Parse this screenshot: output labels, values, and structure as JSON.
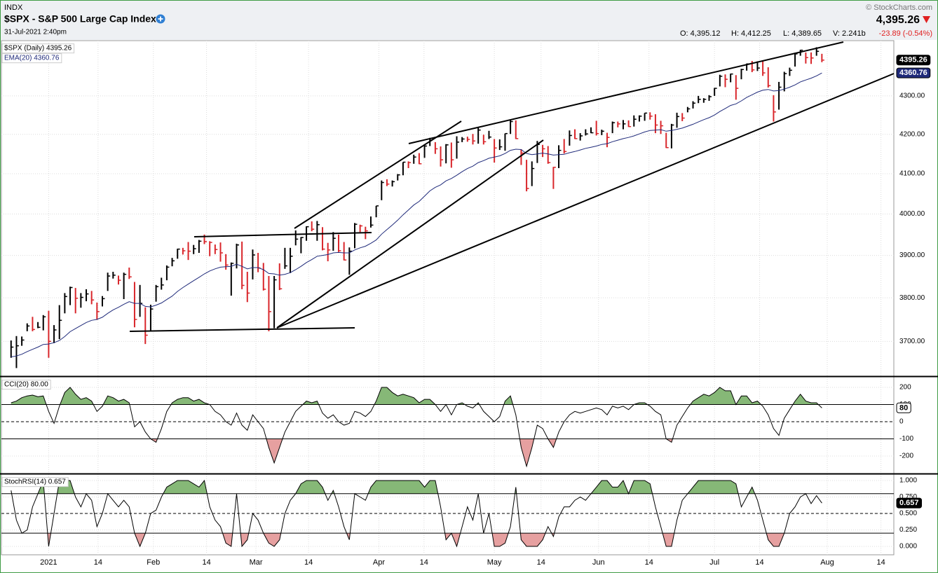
{
  "header": {
    "exchange": "INDX",
    "title": "$SPX - S&P 500 Large Cap Index",
    "timestamp": "31-Jul-2021 2:40pm",
    "copyright": "© StockCharts.com",
    "last": "4,395.26",
    "open": "O: 4,395.12",
    "high": "H: 4,412.25",
    "low": "L: 4,389.65",
    "volume": "V: 2.241b",
    "change": "-23.89 (-0.54%)"
  },
  "chart_data": [
    {
      "type": "ohlc",
      "legend": "$SPX (Daily) 4395.26",
      "last_label": "4395.26",
      "up_color": "#000000",
      "down_color": "#d9262b",
      "log": true,
      "grid": true,
      "ylim": [
        3622,
        4448
      ],
      "yticks": [
        {
          "value": 3700,
          "label": "3700.00"
        },
        {
          "value": 3800,
          "label": "3800.00"
        },
        {
          "value": 3900,
          "label": "3900.00"
        },
        {
          "value": 4000,
          "label": "4000.00"
        },
        {
          "value": 4100,
          "label": "4100.00"
        },
        {
          "value": 4200,
          "label": "4200.00"
        },
        {
          "value": 4300,
          "label": "4300.00"
        }
      ],
      "xlim": [
        -1.8,
        164.4
      ],
      "xticks": [
        {
          "value": 7,
          "label": "2021"
        },
        {
          "value": 16.2,
          "label": "14"
        },
        {
          "value": 26.5,
          "label": "Feb"
        },
        {
          "value": 36.4,
          "label": "14"
        },
        {
          "value": 45.6,
          "label": "Mar"
        },
        {
          "value": 55.4,
          "label": "14"
        },
        {
          "value": 68.5,
          "label": "Apr"
        },
        {
          "value": 76.9,
          "label": "14"
        },
        {
          "value": 90,
          "label": "May"
        },
        {
          "value": 98.7,
          "label": "14"
        },
        {
          "value": 109.4,
          "label": "Jun"
        },
        {
          "value": 118.8,
          "label": "14"
        },
        {
          "value": 131,
          "label": "Jul"
        },
        {
          "value": 139.4,
          "label": "14"
        },
        {
          "value": 152,
          "label": "Aug"
        },
        {
          "value": 162,
          "label": "14"
        }
      ],
      "close": [
        3687,
        3690,
        3703,
        3735,
        3727,
        3732,
        3756,
        3700,
        3726,
        3748,
        3803,
        3824,
        3799,
        3801,
        3809,
        3795,
        3768,
        3798,
        3851,
        3853,
        3841,
        3855,
        3849,
        3750,
        3787,
        3714,
        3774,
        3826,
        3830,
        3872,
        3887,
        3915,
        3911,
        3910,
        3916,
        3934,
        3933,
        3931,
        3914,
        3906,
        3877,
        3881,
        3925,
        3829,
        3811,
        3901,
        3870,
        3820,
        3768,
        3842,
        3821,
        3875,
        3898,
        3939,
        3943,
        3969,
        3963,
        3974,
        3915,
        3913,
        3941,
        3911,
        3889,
        3910,
        3975,
        3971,
        3959,
        3973,
        4020,
        4078,
        4074,
        4080,
        4097,
        4129,
        4128,
        4142,
        4125,
        4170,
        4185,
        4163,
        4135,
        4173,
        4135,
        4180,
        4188,
        4187,
        4183,
        4211,
        4181,
        4193,
        4165,
        4168,
        4202,
        4233,
        4189,
        4152,
        4063,
        4113,
        4174,
        4163,
        4128,
        4116,
        4159,
        4156,
        4197,
        4189,
        4196,
        4201,
        4204,
        4202,
        4208,
        4192,
        4230,
        4227,
        4227,
        4220,
        4239,
        4247,
        4255,
        4247,
        4224,
        4222,
        4166,
        4224,
        4246,
        4242,
        4266,
        4281,
        4291,
        4291,
        4298,
        4320,
        4352,
        4344,
        4358,
        4320,
        4370,
        4385,
        4369,
        4374,
        4361,
        4327,
        4258,
        4323,
        4359,
        4368,
        4412,
        4422,
        4402,
        4401,
        4419,
        4395.26
      ],
      "high": [
        3702,
        3712,
        3711,
        3741,
        3756,
        3744,
        3760,
        3770,
        3737,
        3783,
        3811,
        3826,
        3823,
        3811,
        3820,
        3816,
        3789,
        3804,
        3859,
        3861,
        3852,
        3859,
        3871,
        3837,
        3830,
        3778,
        3784,
        3830,
        3847,
        3876,
        3894,
        3916,
        3918,
        3932,
        3925,
        3937,
        3950,
        3934,
        3926,
        3931,
        3903,
        3883,
        3928,
        3933,
        3861,
        3914,
        3906,
        3882,
        3851,
        3851,
        3881,
        3918,
        3918,
        3960,
        3944,
        3970,
        3982,
        3983,
        3968,
        3930,
        3956,
        3950,
        3932,
        3919,
        3978,
        3974,
        3969,
        3994,
        4020,
        4083,
        4086,
        4083,
        4099,
        4129,
        4131,
        4148,
        4152,
        4173,
        4191,
        4180,
        4169,
        4175,
        4179,
        4195,
        4193,
        4194,
        4201,
        4218,
        4199,
        4209,
        4188,
        4187,
        4202,
        4238,
        4236,
        4162,
        4135,
        4131,
        4183,
        4173,
        4170,
        4117,
        4172,
        4188,
        4210,
        4213,
        4203,
        4213,
        4218,
        4235,
        4212,
        4204,
        4233,
        4233,
        4237,
        4236,
        4249,
        4249,
        4255,
        4257,
        4252,
        4235,
        4204,
        4227,
        4256,
        4255,
        4271,
        4286,
        4300,
        4294,
        4302,
        4321,
        4356,
        4357,
        4359,
        4355,
        4372,
        4386,
        4393,
        4392,
        4393,
        4376,
        4302,
        4337,
        4364,
        4375,
        4415,
        4423,
        4416,
        4416,
        4430,
        4412.25
      ],
      "low": [
        3663,
        3640,
        3690,
        3723,
        3723,
        3730,
        3725,
        3663,
        3696,
        3705,
        3764,
        3783,
        3764,
        3777,
        3792,
        3785,
        3749,
        3780,
        3816,
        3845,
        3831,
        3797,
        3844,
        3732,
        3756,
        3694,
        3725,
        3791,
        3819,
        3841,
        3874,
        3892,
        3902,
        3889,
        3903,
        3906,
        3927,
        3898,
        3903,
        3885,
        3866,
        3805,
        3869,
        3820,
        3790,
        3843,
        3860,
        3817,
        3723,
        3730,
        3818,
        3868,
        3858,
        3924,
        3905,
        3935,
        3958,
        3935,
        3912,
        3886,
        3911,
        3908,
        3888,
        3854,
        3917,
        3956,
        3939,
        3967,
        3992,
        4034,
        4069,
        4068,
        4083,
        4096,
        4114,
        4125,
        4124,
        4140,
        4170,
        4150,
        4118,
        4126,
        4115,
        4138,
        4180,
        4181,
        4174,
        4176,
        4174,
        4188,
        4128,
        4160,
        4158,
        4201,
        4188,
        4122,
        4056,
        4069,
        4127,
        4142,
        4125,
        4062,
        4114,
        4151,
        4171,
        4188,
        4184,
        4197,
        4203,
        4197,
        4198,
        4167,
        4203,
        4218,
        4213,
        4219,
        4220,
        4233,
        4235,
        4238,
        4203,
        4201,
        4165,
        4164,
        4217,
        4234,
        4257,
        4267,
        4281,
        4282,
        4287,
        4300,
        4325,
        4323,
        4336,
        4290,
        4344,
        4367,
        4363,
        4366,
        4353,
        4322,
        4233,
        4264,
        4312,
        4353,
        4378,
        4407,
        4386,
        4385,
        4407,
        4389.65
      ],
      "series": [
        {
          "name": "EMA(20) 4360.76",
          "color": "#1f2a7a",
          "last_label": "4360.76",
          "values": [
            3665,
            3667,
            3671,
            3677,
            3682,
            3687,
            3693,
            3694,
            3697,
            3702,
            3711,
            3722,
            3729,
            3736,
            3743,
            3748,
            3750,
            3755,
            3764,
            3772,
            3778,
            3785,
            3791,
            3787,
            3787,
            3780,
            3779,
            3783,
            3788,
            3796,
            3804,
            3815,
            3824,
            3832,
            3840,
            3848,
            3856,
            3863,
            3868,
            3872,
            3873,
            3874,
            3879,
            3874,
            3868,
            3871,
            3871,
            3866,
            3857,
            3856,
            3853,
            3855,
            3859,
            3866,
            3874,
            3883,
            3890,
            3898,
            3900,
            3902,
            3906,
            3907,
            3906,
            3906,
            3913,
            3918,
            3922,
            3929,
            3937,
            3951,
            3962,
            3973,
            3985,
            3998,
            4010,
            4022,
            4031,
            4044,
            4057,
            4066,
            4072,
            4082,
            4088,
            4096,
            4105,
            4113,
            4119,
            4128,
            4133,
            4139,
            4142,
            4145,
            4151,
            4159,
            4162,
            4161,
            4151,
            4148,
            4150,
            4152,
            4150,
            4147,
            4148,
            4149,
            4153,
            4156,
            4160,
            4164,
            4167,
            4170,
            4174,
            4176,
            4181,
            4185,
            4189,
            4192,
            4196,
            4201,
            4206,
            4210,
            4211,
            4212,
            4208,
            4210,
            4213,
            4216,
            4221,
            4226,
            4232,
            4238,
            4243,
            4250,
            4259,
            4267,
            4275,
            4279,
            4287,
            4296,
            4303,
            4310,
            4315,
            4317,
            4313,
            4314,
            4318,
            4323,
            4329,
            4337,
            4342,
            4347,
            4353,
            4360.76
          ]
        }
      ]
    },
    {
      "type": "line",
      "legend": "CCI(20) 80.00",
      "last_label": "80",
      "color": "#000000",
      "fill_above": "#86b877",
      "fill_below": "#e6a0a0",
      "grid": true,
      "ylim": [
        -302,
        261
      ],
      "yticks": [
        -200,
        -100,
        0,
        100,
        200
      ],
      "bands": [
        -100,
        100
      ],
      "midline": 0,
      "values": [
        110,
        120,
        140,
        150,
        155,
        145,
        150,
        60,
        -10,
        90,
        170,
        200,
        160,
        130,
        140,
        120,
        60,
        90,
        150,
        140,
        120,
        130,
        110,
        -30,
        0,
        -60,
        -100,
        -120,
        -40,
        60,
        110,
        130,
        140,
        140,
        120,
        130,
        110,
        100,
        60,
        40,
        0,
        -20,
        50,
        -20,
        -50,
        40,
        0,
        -40,
        -150,
        -240,
        -150,
        -60,
        0,
        60,
        90,
        120,
        110,
        120,
        50,
        20,
        40,
        0,
        -20,
        -10,
        60,
        50,
        30,
        60,
        120,
        200,
        200,
        170,
        150,
        160,
        150,
        140,
        110,
        130,
        130,
        100,
        60,
        100,
        40,
        100,
        110,
        90,
        80,
        110,
        60,
        30,
        0,
        30,
        120,
        150,
        40,
        -150,
        -260,
        -150,
        -20,
        -40,
        -100,
        -150,
        -60,
        0,
        40,
        60,
        50,
        60,
        70,
        80,
        70,
        40,
        90,
        80,
        90,
        70,
        100,
        110,
        110,
        90,
        60,
        40,
        -100,
        -120,
        -20,
        30,
        80,
        120,
        140,
        160,
        150,
        170,
        200,
        180,
        180,
        100,
        150,
        150,
        110,
        120,
        90,
        40,
        -40,
        -80,
        20,
        70,
        120,
        160,
        120,
        110,
        110,
        80
      ]
    },
    {
      "type": "line",
      "legend": "StochRSI(14) 0.657",
      "last_label": "0.657",
      "color": "#000000",
      "fill_above": "#86b877",
      "fill_below": "#e6a0a0",
      "grid": true,
      "ylim": [
        -0.128,
        1.096
      ],
      "yticks": [
        {
          "value": 0,
          "label": "0.000"
        },
        {
          "value": 0.25,
          "label": "0.250"
        },
        {
          "value": 0.5,
          "label": "0.500"
        },
        {
          "value": 0.75,
          "label": "0.750"
        },
        {
          "value": 1,
          "label": "1.000"
        }
      ],
      "bands": [
        0.2,
        0.8
      ],
      "midline": 0.5,
      "values": [
        0.85,
        0.4,
        0.2,
        0.25,
        0.6,
        0.8,
        1.0,
        0.0,
        0.5,
        1.0,
        1.0,
        1.0,
        0.75,
        0.6,
        0.8,
        0.7,
        0.3,
        0.5,
        0.8,
        0.7,
        0.6,
        0.7,
        0.6,
        0.2,
        0.0,
        0.2,
        0.5,
        0.55,
        0.75,
        0.9,
        0.95,
        1.0,
        1.0,
        1.0,
        0.95,
        0.9,
        1.0,
        0.6,
        0.4,
        0.3,
        0.05,
        0.0,
        0.8,
        0.0,
        0.1,
        0.5,
        0.4,
        0.2,
        0.05,
        0.0,
        0.1,
        0.5,
        0.7,
        0.8,
        0.95,
        1.0,
        1.0,
        1.0,
        0.9,
        0.7,
        0.85,
        0.6,
        0.3,
        0.1,
        0.8,
        0.75,
        0.7,
        0.9,
        1.0,
        1.0,
        1.0,
        1.0,
        1.0,
        1.0,
        1.0,
        1.0,
        1.0,
        0.9,
        1.0,
        1.0,
        0.6,
        0.1,
        0.2,
        0.0,
        0.3,
        0.6,
        0.4,
        0.8,
        0.2,
        0.5,
        0.0,
        0.0,
        0.05,
        0.3,
        0.9,
        0.1,
        0.0,
        0.0,
        0.0,
        0.1,
        0.3,
        0.15,
        0.45,
        0.6,
        0.6,
        0.7,
        0.75,
        0.7,
        0.8,
        0.9,
        1.0,
        1.0,
        0.9,
        0.9,
        1.0,
        0.8,
        1.0,
        1.0,
        1.0,
        0.95,
        0.6,
        0.3,
        0.0,
        0.0,
        0.4,
        0.7,
        0.8,
        0.9,
        1.0,
        1.0,
        1.0,
        1.0,
        1.0,
        1.0,
        1.0,
        0.95,
        0.6,
        0.75,
        0.9,
        0.7,
        0.4,
        0.1,
        0.0,
        0.0,
        0.2,
        0.5,
        0.6,
        0.75,
        0.8,
        0.65,
        0.77,
        0.657
      ]
    }
  ]
}
